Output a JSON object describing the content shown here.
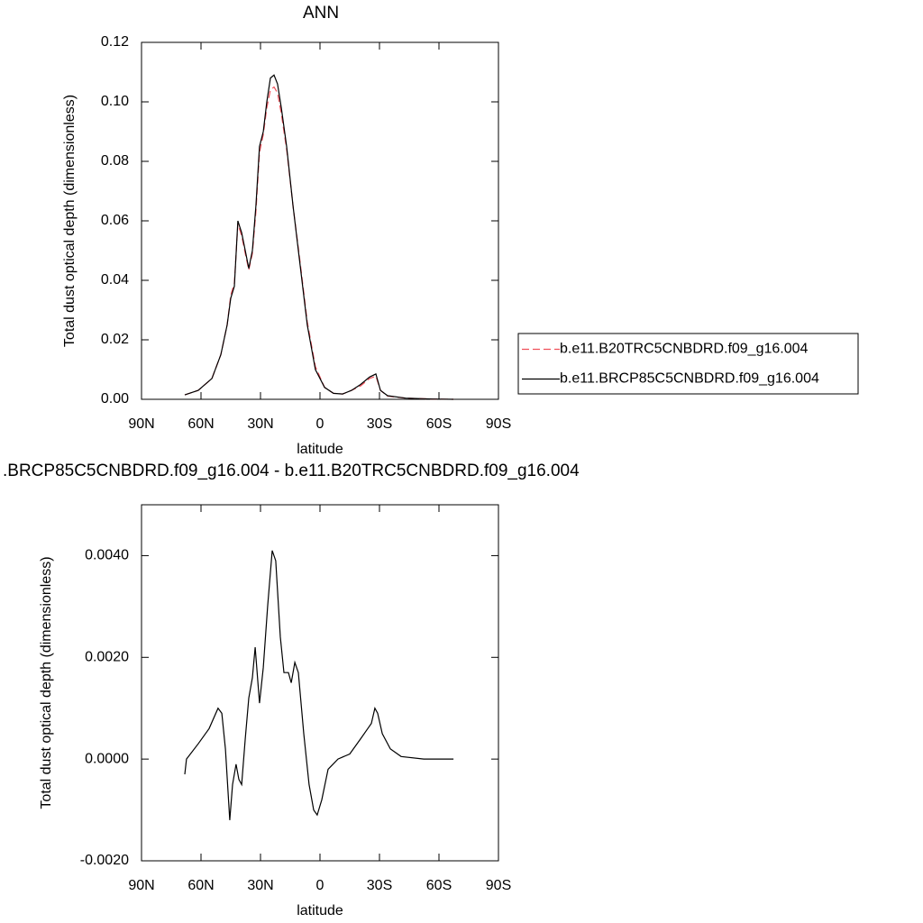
{
  "chart_data": [
    {
      "type": "line",
      "title": "ANN",
      "x_label": "latitude",
      "y_label": "Total dust optical depth (dimensionless)",
      "xlim": [
        90,
        -90
      ],
      "ylim": [
        0,
        0.12
      ],
      "xticks": [
        {
          "value": 90,
          "label": "90N"
        },
        {
          "value": 60,
          "label": "60N"
        },
        {
          "value": 30,
          "label": "30N"
        },
        0,
        {
          "value": -30,
          "label": "30S"
        },
        {
          "value": -60,
          "label": "60S"
        },
        {
          "value": -90,
          "label": "90S"
        }
      ],
      "yticks": [
        {
          "value": 0,
          "label": "0.00"
        },
        0.02,
        0.04,
        0.06,
        0.08,
        {
          "value": 0.1,
          "label": "0.10"
        },
        0.12
      ],
      "legend": "right",
      "x": [
        68.2,
        61.4,
        54.5,
        50,
        46.8,
        45,
        43.2,
        41.4,
        39.5,
        37.7,
        35.9,
        34.1,
        32.3,
        30.5,
        28.6,
        26.8,
        25,
        23.2,
        21.4,
        19.5,
        16.8,
        13.6,
        10,
        6.4,
        2.3,
        -2.3,
        -6.8,
        -11.4,
        -15.9,
        -20.5,
        -25,
        -28.2,
        -30.5,
        -34.1,
        -43.2,
        -56.8,
        -67.3
      ],
      "series": [
        {
          "name": "b.e11.B20TRC5CNBDRD.f09_g16.004",
          "color": "#f0505a",
          "line_style": "dashed",
          "values": [
            0.0015,
            0.003,
            0.007,
            0.015,
            0.025,
            0.035,
            0.039,
            0.059,
            0.055,
            0.049,
            0.0435,
            0.049,
            0.063,
            0.083,
            0.089,
            0.098,
            0.104,
            0.105,
            0.103,
            0.096,
            0.084,
            0.065,
            0.046,
            0.026,
            0.011,
            0.004,
            0.002,
            0.0018,
            0.003,
            0.0045,
            0.007,
            0.0078,
            0.003,
            0.0011,
            0.0004,
            0.0001,
            0
          ]
        },
        {
          "name": "b.e11.BRCP85C5CNBDRD.f09_g16.004",
          "color": "#000000",
          "line_style": "solid",
          "values": [
            0.0015,
            0.003,
            0.007,
            0.015,
            0.025,
            0.034,
            0.038,
            0.06,
            0.056,
            0.05,
            0.044,
            0.05,
            0.065,
            0.085,
            0.09,
            0.1,
            0.108,
            0.109,
            0.106,
            0.098,
            0.085,
            0.065,
            0.045,
            0.025,
            0.01,
            0.004,
            0.002,
            0.0018,
            0.003,
            0.005,
            0.0075,
            0.0085,
            0.003,
            0.0012,
            0.0004,
            0.0001,
            0
          ]
        }
      ]
    },
    {
      "type": "line",
      "title": ".BRCP85C5CNBDRD.f09_g16.004 - b.e11.B20TRC5CNBDRD.f09_g16.004",
      "x_label": "latitude",
      "y_label": "Total dust optical depth (dimensionless)",
      "xlim": [
        90,
        -90
      ],
      "ylim": [
        -0.002,
        0.005
      ],
      "xticks": [
        {
          "value": 90,
          "label": "90N"
        },
        {
          "value": 60,
          "label": "60N"
        },
        {
          "value": 30,
          "label": "30N"
        },
        0,
        {
          "value": -30,
          "label": "30S"
        },
        {
          "value": -60,
          "label": "60S"
        },
        {
          "value": -90,
          "label": "90S"
        }
      ],
      "yticks": [
        {
          "value": -0.002,
          "label": "-0.0020"
        },
        {
          "value": 0,
          "label": "0.0000"
        },
        {
          "value": 0.002,
          "label": "0.0020"
        },
        {
          "value": 0.004,
          "label": "0.0040"
        }
      ],
      "x": [
        68.2,
        67.3,
        61.4,
        55.9,
        51.4,
        49.5,
        47.7,
        45.5,
        44.1,
        42.3,
        40.9,
        39.5,
        37.7,
        35.9,
        34.1,
        32.7,
        30.5,
        28.6,
        26.4,
        24.1,
        22.3,
        20,
        18.2,
        15.9,
        14.5,
        12.7,
        10.9,
        8.2,
        5.5,
        3.2,
        1.4,
        -0.9,
        -4.1,
        -9.1,
        -15,
        -20.5,
        -24.1,
        -25.9,
        -27.7,
        -29.1,
        -31.4,
        -35.5,
        -40.9,
        -52.3,
        -67.3
      ],
      "series": [
        {
          "color": "#000000",
          "line_style": "solid",
          "values": [
            -0.0003,
            0,
            0.0003,
            0.0006,
            0.001,
            0.0009,
            0.0002,
            -0.0012,
            -0.0005,
            -0.0001,
            -0.0004,
            -0.0005,
            0.0004,
            0.0012,
            0.0016,
            0.0022,
            0.0011,
            0.0018,
            0.003,
            0.0041,
            0.0039,
            0.0024,
            0.0017,
            0.0017,
            0.0015,
            0.0019,
            0.0017,
            0.0005,
            -0.0005,
            -0.001,
            -0.0011,
            -0.0008,
            -0.0002,
            0,
            0.0001,
            0.0004,
            0.0006,
            0.0007,
            0.001,
            0.0009,
            0.0005,
            0.0002,
            5e-05,
            0,
            0
          ]
        }
      ]
    }
  ]
}
